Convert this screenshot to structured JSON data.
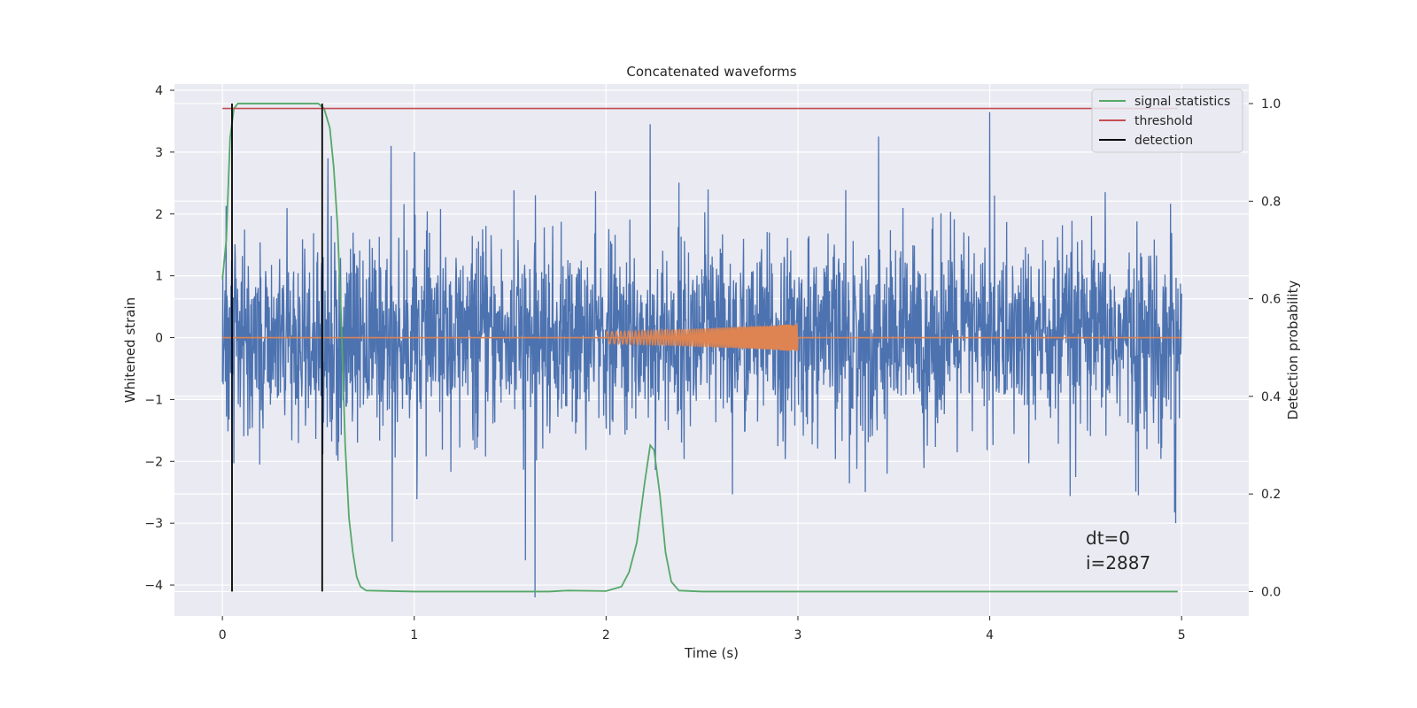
{
  "chart_data": {
    "type": "line",
    "title": "Concatenated waveforms",
    "xlabel": "Time (s)",
    "ylabel": "Whitened strain",
    "y2label": "Detection probability",
    "xlim": [
      -0.25,
      5.35
    ],
    "ylim": [
      -4.5,
      4.1
    ],
    "y2lim": [
      -0.05,
      1.04
    ],
    "x_ticks": [
      0,
      1,
      2,
      3,
      4,
      5
    ],
    "y_ticks": [
      4,
      3,
      2,
      1,
      0,
      -1,
      -2,
      -3,
      -4
    ],
    "y2_ticks": [
      1.0,
      0.8,
      0.6,
      0.4,
      0.2,
      0.0
    ],
    "grid": true,
    "legend_position": "top-right",
    "colors": {
      "strain": "#4c72b0",
      "injection": "#dd8452",
      "signal_statistics": "#55a868",
      "threshold": "#c44e52",
      "detection": "#000000",
      "background": "#eaeaf2",
      "grid": "#ffffff"
    },
    "series": [
      {
        "name": "",
        "axis": "left",
        "kind": "noise",
        "x_range": [
          0,
          5
        ],
        "std": 0.75,
        "notable_peaks": [
          {
            "x": 0.55,
            "y": 2.9
          },
          {
            "x": 0.88,
            "y": 3.1
          },
          {
            "x": 1.0,
            "y": 3.0
          },
          {
            "x": 2.23,
            "y": 3.45
          },
          {
            "x": 3.42,
            "y": 3.25
          },
          {
            "x": 4.0,
            "y": 3.65
          },
          {
            "x": 1.63,
            "y": -4.2
          },
          {
            "x": 1.58,
            "y": -3.6
          },
          {
            "x": 4.97,
            "y": -3.0
          }
        ]
      },
      {
        "name": "",
        "axis": "left",
        "kind": "chirp",
        "x_range": [
          2.0,
          3.0
        ],
        "amplitude_start": 0.1,
        "amplitude_end": 0.22
      },
      {
        "name": "signal statistics",
        "axis": "right",
        "points": [
          [
            0.0,
            0.64
          ],
          [
            0.02,
            0.72
          ],
          [
            0.04,
            0.93
          ],
          [
            0.06,
            0.99
          ],
          [
            0.08,
            1.0
          ],
          [
            0.45,
            1.0
          ],
          [
            0.5,
            1.0
          ],
          [
            0.53,
            0.99
          ],
          [
            0.56,
            0.95
          ],
          [
            0.58,
            0.87
          ],
          [
            0.6,
            0.75
          ],
          [
            0.62,
            0.55
          ],
          [
            0.64,
            0.3
          ],
          [
            0.66,
            0.15
          ],
          [
            0.68,
            0.08
          ],
          [
            0.7,
            0.03
          ],
          [
            0.72,
            0.01
          ],
          [
            0.75,
            0.002
          ],
          [
            1.0,
            0.0
          ],
          [
            1.5,
            0.0
          ],
          [
            1.7,
            0.0
          ],
          [
            1.8,
            0.002
          ],
          [
            2.0,
            0.001
          ],
          [
            2.08,
            0.01
          ],
          [
            2.12,
            0.04
          ],
          [
            2.16,
            0.1
          ],
          [
            2.2,
            0.22
          ],
          [
            2.23,
            0.3
          ],
          [
            2.25,
            0.29
          ],
          [
            2.28,
            0.2
          ],
          [
            2.31,
            0.08
          ],
          [
            2.34,
            0.02
          ],
          [
            2.38,
            0.002
          ],
          [
            2.5,
            0.0
          ],
          [
            3.0,
            0.0
          ],
          [
            4.0,
            0.0
          ],
          [
            4.98,
            0.0
          ]
        ]
      },
      {
        "name": "threshold",
        "axis": "right",
        "points": [
          [
            0.0,
            0.99
          ],
          [
            4.98,
            0.99
          ]
        ]
      },
      {
        "name": "detection",
        "axis": "right",
        "vlines": [
          0.05,
          0.52
        ],
        "ymin": 0.0,
        "ymax": 1.0
      }
    ],
    "legend": [
      "signal statistics",
      "threshold",
      "detection"
    ],
    "annotations": [
      "dt=0",
      "i=2887"
    ]
  }
}
